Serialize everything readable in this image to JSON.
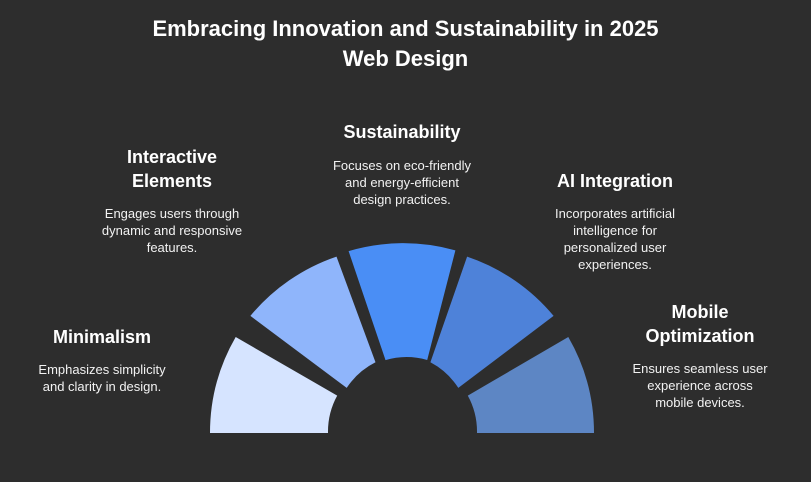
{
  "title": {
    "line1": "Embracing Innovation and Sustainability in 2025",
    "line2": "Web Design"
  },
  "segments": [
    {
      "heading": [
        "Minimalism"
      ],
      "description": [
        "Emphasizes simplicity",
        "and clarity in design."
      ],
      "color": "#d6e4ff"
    },
    {
      "heading": [
        "Interactive",
        "Elements"
      ],
      "description": [
        "Engages users through",
        "dynamic and responsive",
        "features."
      ],
      "color": "#8fb5fb"
    },
    {
      "heading": [
        "Sustainability"
      ],
      "description": [
        "Focuses on eco-friendly",
        "and energy-efficient",
        "design practices."
      ],
      "color": "#4a8ef5"
    },
    {
      "heading": [
        "AI Integration"
      ],
      "description": [
        "Incorporates artificial",
        "intelligence for",
        "personalized user",
        "experiences."
      ],
      "color": "#4e82d9"
    },
    {
      "heading": [
        "Mobile",
        "Optimization"
      ],
      "description": [
        "Ensures seamless user",
        "experience across",
        "mobile devices."
      ],
      "color": "#5d86c4"
    }
  ]
}
